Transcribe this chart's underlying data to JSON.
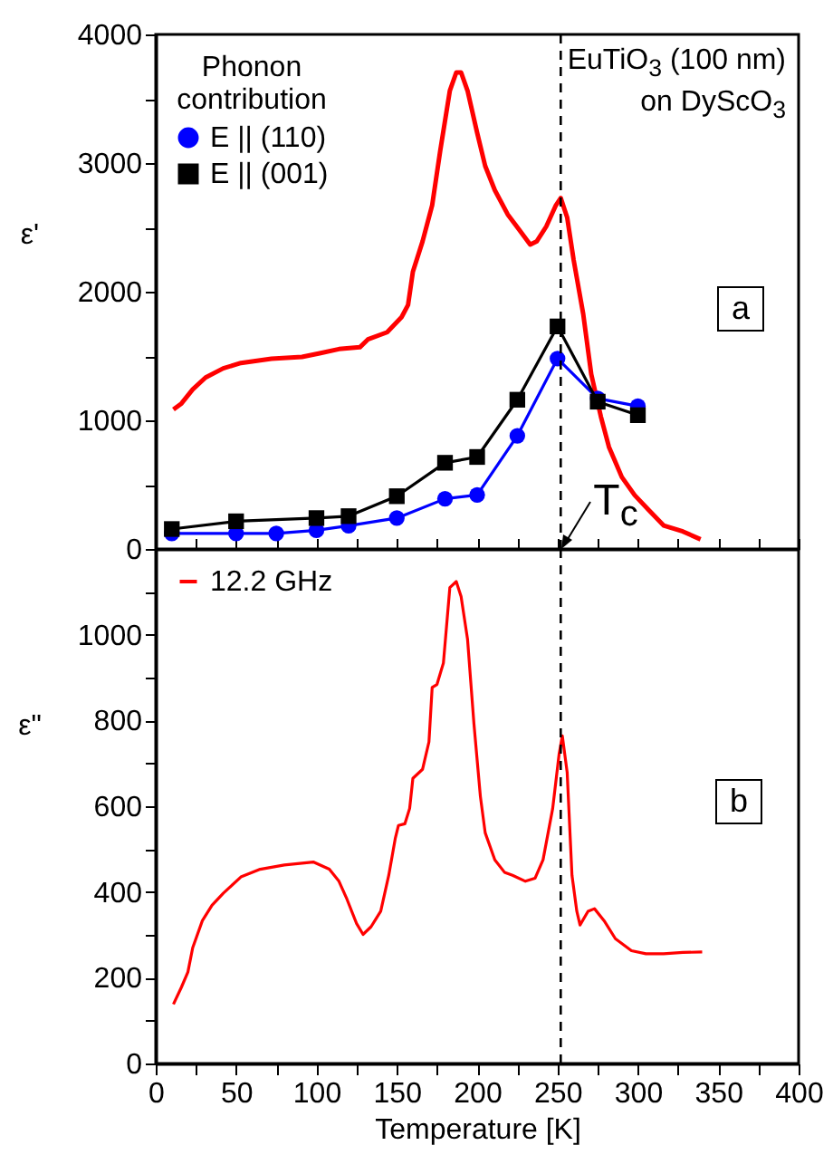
{
  "chart_data": [
    {
      "type": "line",
      "ylabel": "ε'",
      "legend_title": "Phonon contribution",
      "legend": "top left",
      "tick_labels": "y",
      "xlim": [
        0,
        400
      ],
      "xticks": [
        0,
        {
          "value": 25,
          "label": null
        },
        50,
        {
          "value": 75,
          "label": null
        },
        100,
        {
          "value": 125,
          "label": null
        },
        150,
        {
          "value": 175,
          "label": null
        },
        200,
        {
          "value": 225,
          "label": null
        },
        250,
        {
          "value": 275,
          "label": null
        },
        300,
        {
          "value": 325,
          "label": null
        },
        350,
        {
          "value": 375,
          "label": null
        },
        400
      ],
      "ylim": [
        0,
        4000
      ],
      "yticks": [
        0,
        {
          "value": 500,
          "label": null
        },
        1000,
        {
          "value": 1500,
          "label": null
        },
        2000,
        {
          "value": 2500,
          "label": null
        },
        3000,
        {
          "value": 3500,
          "label": null
        },
        4000
      ],
      "ref_lines": [
        {
          "axis": "x",
          "value": 252,
          "line_style": "dashed",
          "color": "#000000"
        }
      ],
      "annotations": [
        "EuTiO$_{3}$ (100 nm) on DyScO$_{3}$",
        "a",
        {
          "text": "T$_{c}$",
          "x": 252,
          "y": 0
        }
      ],
      "series": [
        {
          "color": "#ff0000",
          "x": [
            11,
            16,
            23,
            31,
            42,
            53,
            72,
            91,
            102,
            114,
            127,
            132,
            144,
            153,
            157,
            160,
            166,
            172,
            177,
            183,
            187,
            190,
            194,
            200,
            205,
            211,
            219,
            226,
            233,
            237,
            243,
            249,
            252,
            256,
            260,
            266,
            271,
            277,
            282,
            290,
            298,
            307,
            316,
            328,
            339
          ],
          "values": [
            1085,
            1131,
            1240,
            1333,
            1404,
            1446,
            1479,
            1493,
            1521,
            1554,
            1568,
            1629,
            1685,
            1803,
            1897,
            2155,
            2390,
            2672,
            3094,
            3563,
            3704,
            3704,
            3563,
            3235,
            2977,
            2789,
            2601,
            2484,
            2366,
            2390,
            2507,
            2672,
            2728,
            2578,
            2249,
            1826,
            1357,
            1028,
            793,
            559,
            418,
            300,
            183,
            136,
            75
          ]
        },
        {
          "name": "E || (110)",
          "color": "#0000ff",
          "marker": "circle",
          "x": [
            10,
            50,
            75,
            100,
            120,
            150,
            180,
            200,
            225,
            250,
            275,
            300
          ],
          "values": [
            120,
            120,
            120,
            145,
            180,
            240,
            390,
            420,
            880,
            1480,
            1170,
            1110
          ]
        },
        {
          "name": "E || (001)",
          "color": "#000000",
          "marker": "square",
          "x": [
            10,
            50,
            100,
            120,
            150,
            180,
            200,
            225,
            250,
            275,
            300
          ],
          "values": [
            155,
            215,
            240,
            255,
            410,
            670,
            715,
            1160,
            1730,
            1145,
            1040
          ]
        }
      ]
    },
    {
      "type": "line",
      "xlabel": "Temperature [K]",
      "ylabel": "ε\"",
      "legend": "top left",
      "xlim": [
        0,
        400
      ],
      "xticks": [
        0,
        {
          "value": 25,
          "label": null
        },
        50,
        {
          "value": 75,
          "label": null
        },
        100,
        {
          "value": 125,
          "label": null
        },
        150,
        {
          "value": 175,
          "label": null
        },
        200,
        {
          "value": 225,
          "label": null
        },
        250,
        {
          "value": 275,
          "label": null
        },
        300,
        {
          "value": 325,
          "label": null
        },
        350,
        {
          "value": 375,
          "label": null
        },
        400
      ],
      "ylim": [
        0,
        1200
      ],
      "yticks": [
        0,
        {
          "value": 100,
          "label": null
        },
        200,
        {
          "value": 300,
          "label": null
        },
        400,
        {
          "value": 500,
          "label": null
        },
        600,
        {
          "value": 700,
          "label": null
        },
        800,
        {
          "value": 900,
          "label": null
        },
        1000,
        {
          "value": 1100,
          "label": null
        }
      ],
      "ref_lines": [
        {
          "axis": "x",
          "value": 252,
          "line_style": "dashed",
          "color": "#000000"
        }
      ],
      "annotations": [
        "b"
      ],
      "series": [
        {
          "name": "12.2 GHz",
          "color": "#ff0000",
          "x": [
            11,
            16,
            20,
            23,
            29,
            35,
            42,
            53,
            65,
            80,
            98,
            108,
            114,
            119,
            125,
            129,
            134,
            140,
            145,
            149,
            151,
            155,
            158,
            160,
            166,
            170,
            172,
            175,
            179,
            183,
            187,
            190,
            194,
            198,
            202,
            205,
            211,
            217,
            222,
            230,
            236,
            241,
            247,
            251,
            253,
            256,
            259,
            262,
            264,
            269,
            273,
            279,
            286,
            296,
            305,
            316,
            328,
            340
          ],
          "values": [
            138,
            178,
            213,
            270,
            333,
            369,
            397,
            435,
            453,
            463,
            470,
            453,
            425,
            383,
            326,
            301,
            319,
            355,
            439,
            524,
            555,
            559,
            595,
            665,
            686,
            750,
            877,
            884,
            934,
            1110,
            1124,
            1089,
            990,
            792,
            623,
            538,
            475,
            446,
            439,
            425,
            432,
            475,
            595,
            722,
            764,
            679,
            439,
            355,
            323,
            355,
            361,
            333,
            291,
            263,
            256,
            256,
            259,
            260
          ]
        }
      ]
    }
  ]
}
